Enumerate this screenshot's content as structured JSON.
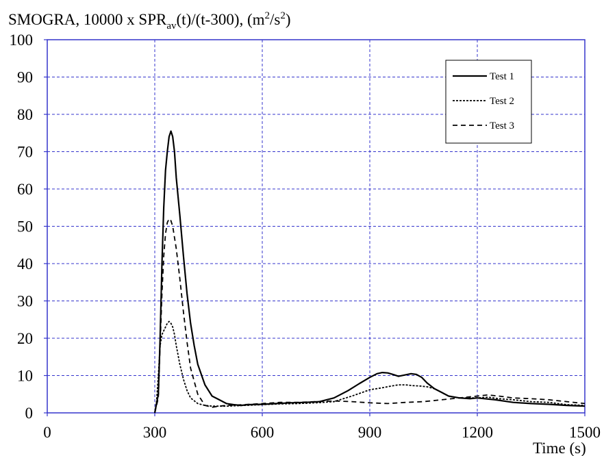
{
  "chart_data": {
    "type": "line",
    "title_parts": {
      "t1": "SMOGRA, 10000 x SPR",
      "t1_sub": "av",
      "t2": "(t)/(t-300), (m",
      "t2_sup": "2",
      "t3": "/s",
      "t3_sup": "2",
      "t4": ")"
    },
    "xlabel": "Time (s)",
    "ylabel": "",
    "xlim": [
      0,
      1500
    ],
    "ylim": [
      0,
      100
    ],
    "xticks": [
      0,
      300,
      600,
      900,
      1200,
      1500
    ],
    "yticks": [
      0,
      10,
      20,
      30,
      40,
      50,
      60,
      70,
      80,
      90,
      100
    ],
    "grid": true,
    "legend_position": "top-right",
    "colors": {
      "axis": "#3333cc",
      "grid": "#3333cc",
      "series": "#000000"
    },
    "series": [
      {
        "name": "Test 1",
        "dash": "solid",
        "x": [
          300,
          310,
          315,
          320,
          325,
          330,
          335,
          340,
          345,
          350,
          355,
          360,
          370,
          380,
          390,
          400,
          410,
          420,
          440,
          460,
          480,
          500,
          520,
          540,
          560,
          600,
          640,
          680,
          720,
          760,
          800,
          840,
          870,
          900,
          920,
          935,
          950,
          965,
          980,
          1000,
          1015,
          1030,
          1045,
          1060,
          1080,
          1100,
          1120,
          1150,
          1180,
          1200,
          1220,
          1250,
          1300,
          1350,
          1400,
          1450,
          1500
        ],
        "y": [
          0,
          5,
          20,
          40,
          55,
          65,
          70,
          74,
          75.5,
          74,
          70,
          63,
          53,
          42,
          32,
          24,
          18,
          13,
          7.5,
          4.5,
          3.5,
          2.5,
          2.2,
          2,
          2.2,
          2.3,
          2.5,
          2.7,
          2.8,
          3,
          4,
          6,
          7.8,
          9.5,
          10.5,
          10.8,
          10.7,
          10.3,
          9.8,
          10.2,
          10.5,
          10.3,
          9.5,
          8,
          6.5,
          5.5,
          4.5,
          4,
          3.8,
          4,
          3.8,
          3.5,
          2.8,
          2.5,
          2.3,
          2,
          1.8
        ]
      },
      {
        "name": "Test 2",
        "dash": "dotted",
        "x": [
          300,
          305,
          310,
          315,
          320,
          325,
          330,
          335,
          340,
          345,
          350,
          355,
          360,
          370,
          380,
          390,
          400,
          420,
          440,
          460,
          500,
          550,
          600,
          650,
          700,
          750,
          800,
          850,
          880,
          900,
          920,
          940,
          960,
          980,
          1000,
          1020,
          1040,
          1060,
          1080,
          1100,
          1120,
          1150,
          1180,
          1200,
          1230,
          1260,
          1300,
          1350,
          1400,
          1450,
          1500
        ],
        "y": [
          0,
          3,
          10,
          18,
          21,
          22,
          23,
          24,
          24.5,
          24,
          23,
          21,
          18,
          13,
          9,
          6,
          4,
          2.5,
          2,
          1.8,
          1.8,
          2,
          2.2,
          2.4,
          2.5,
          2.7,
          3,
          4.5,
          5.5,
          6.2,
          6.5,
          6.8,
          7.2,
          7.5,
          7.5,
          7.3,
          7.2,
          7,
          6.5,
          5.5,
          4.5,
          4,
          4,
          4,
          4.2,
          3.8,
          3.5,
          3,
          2.8,
          2.2,
          2
        ]
      },
      {
        "name": "Test 3",
        "dash": "dashed",
        "x": [
          300,
          310,
          315,
          320,
          325,
          330,
          335,
          340,
          345,
          350,
          360,
          370,
          380,
          390,
          400,
          420,
          440,
          460,
          480,
          500,
          550,
          600,
          650,
          700,
          750,
          800,
          850,
          900,
          950,
          1000,
          1050,
          1100,
          1150,
          1200,
          1230,
          1260,
          1300,
          1350,
          1400,
          1450,
          1500
        ],
        "y": [
          0,
          4,
          18,
          32,
          42,
          48,
          51,
          52,
          51.5,
          50,
          44,
          36,
          27,
          19,
          12,
          5,
          2,
          1.5,
          1.8,
          2,
          2.2,
          2.5,
          2.8,
          2.8,
          3,
          3.2,
          3,
          2.7,
          2.5,
          2.8,
          3,
          3.5,
          4,
          4.5,
          4.8,
          4.5,
          4,
          3.8,
          3.5,
          3,
          2.5
        ]
      }
    ]
  }
}
